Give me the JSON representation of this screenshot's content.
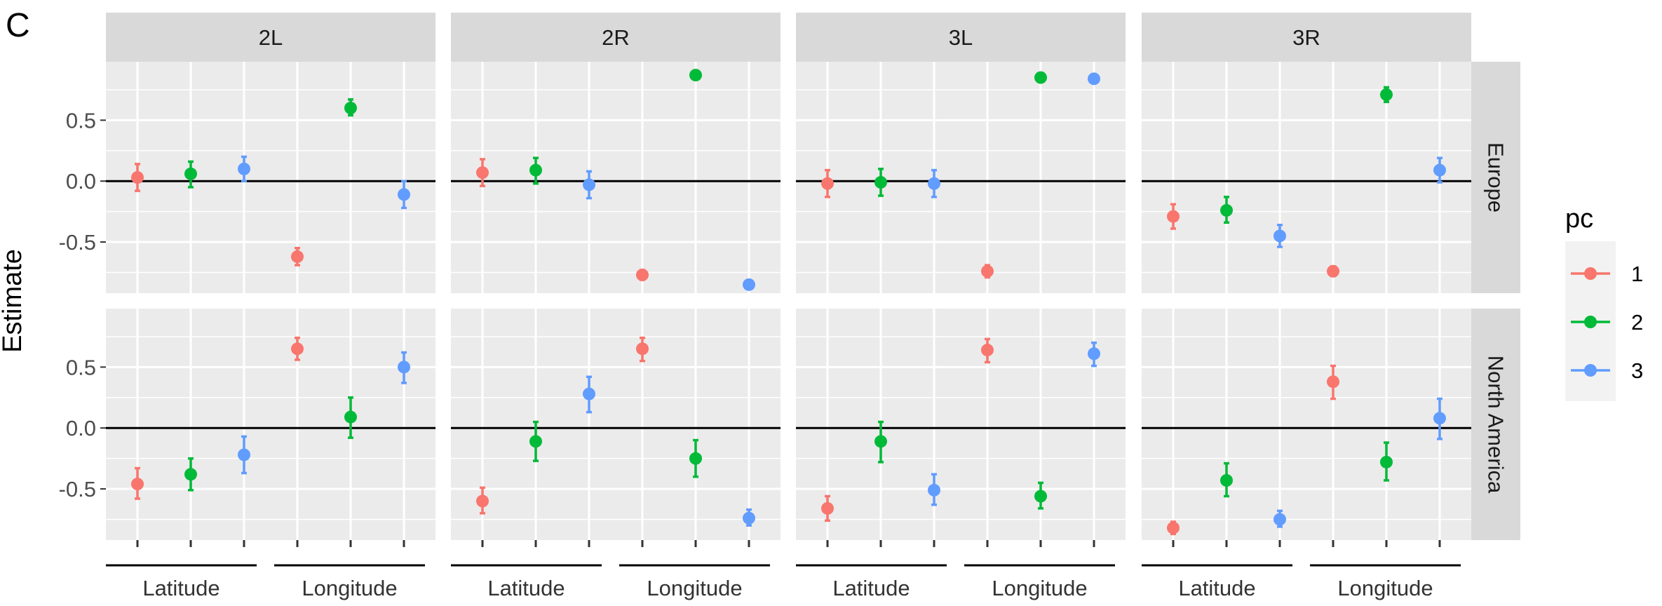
{
  "chart_data": {
    "type": "scatter",
    "panel_letter": "C",
    "ylabel": "Estimate",
    "columns": [
      "2L",
      "2R",
      "3L",
      "3R"
    ],
    "rows": [
      "Europe",
      "North America"
    ],
    "x_positions": [
      {
        "group": "Latitude",
        "pc": "1"
      },
      {
        "group": "Latitude",
        "pc": "2"
      },
      {
        "group": "Latitude",
        "pc": "3"
      },
      {
        "group": "Longitude",
        "pc": "1"
      },
      {
        "group": "Longitude",
        "pc": "2"
      },
      {
        "group": "Longitude",
        "pc": "3"
      }
    ],
    "group_labels": [
      "Latitude",
      "Longitude"
    ],
    "ylim": [
      -0.92,
      0.98
    ],
    "y_ticks": [
      "0.5",
      "0.0",
      "-0.5"
    ],
    "y_tick_values": [
      0.5,
      0.0,
      -0.5
    ],
    "y_minor_ticks": [
      0.75,
      0.25,
      -0.25,
      -0.75
    ],
    "reference_line": 0,
    "legend": {
      "title": "pc",
      "position": "right",
      "entries": [
        {
          "label": "1",
          "color": "#F8766D"
        },
        {
          "label": "2",
          "color": "#00BA38"
        },
        {
          "label": "3",
          "color": "#619CFF"
        }
      ]
    },
    "colors": {
      "1": "#F8766D",
      "2": "#00BA38",
      "3": "#619CFF"
    },
    "panels": [
      {
        "column": "2L",
        "row": "Europe",
        "points": [
          {
            "y": 0.03,
            "lo": -0.08,
            "hi": 0.14
          },
          {
            "y": 0.06,
            "lo": -0.05,
            "hi": 0.16
          },
          {
            "y": 0.1,
            "lo": 0.0,
            "hi": 0.2
          },
          {
            "y": -0.62,
            "lo": -0.69,
            "hi": -0.55
          },
          {
            "y": 0.6,
            "lo": 0.54,
            "hi": 0.67
          },
          {
            "y": -0.11,
            "lo": -0.22,
            "hi": 0.0
          }
        ]
      },
      {
        "column": "2R",
        "row": "Europe",
        "points": [
          {
            "y": 0.07,
            "lo": -0.04,
            "hi": 0.18
          },
          {
            "y": 0.09,
            "lo": -0.02,
            "hi": 0.19
          },
          {
            "y": -0.03,
            "lo": -0.14,
            "hi": 0.08
          },
          {
            "y": -0.77,
            "lo": -0.81,
            "hi": -0.73
          },
          {
            "y": 0.87,
            "lo": 0.85,
            "hi": 0.89
          },
          {
            "y": -0.85,
            "lo": -0.88,
            "hi": -0.82
          }
        ]
      },
      {
        "column": "3L",
        "row": "Europe",
        "points": [
          {
            "y": -0.02,
            "lo": -0.13,
            "hi": 0.09
          },
          {
            "y": -0.01,
            "lo": -0.12,
            "hi": 0.1
          },
          {
            "y": -0.02,
            "lo": -0.13,
            "hi": 0.09
          },
          {
            "y": -0.74,
            "lo": -0.79,
            "hi": -0.69
          },
          {
            "y": 0.85,
            "lo": 0.83,
            "hi": 0.87
          },
          {
            "y": 0.84,
            "lo": 0.82,
            "hi": 0.86
          }
        ]
      },
      {
        "column": "3R",
        "row": "Europe",
        "points": [
          {
            "y": -0.29,
            "lo": -0.39,
            "hi": -0.19
          },
          {
            "y": -0.24,
            "lo": -0.34,
            "hi": -0.13
          },
          {
            "y": -0.45,
            "lo": -0.54,
            "hi": -0.36
          },
          {
            "y": -0.74,
            "lo": -0.78,
            "hi": -0.7
          },
          {
            "y": 0.71,
            "lo": 0.65,
            "hi": 0.77
          },
          {
            "y": 0.09,
            "lo": -0.01,
            "hi": 0.19
          }
        ]
      },
      {
        "column": "2L",
        "row": "North America",
        "points": [
          {
            "y": -0.46,
            "lo": -0.58,
            "hi": -0.33
          },
          {
            "y": -0.38,
            "lo": -0.51,
            "hi": -0.25
          },
          {
            "y": -0.22,
            "lo": -0.37,
            "hi": -0.07
          },
          {
            "y": 0.65,
            "lo": 0.56,
            "hi": 0.74
          },
          {
            "y": 0.09,
            "lo": -0.08,
            "hi": 0.25
          },
          {
            "y": 0.5,
            "lo": 0.37,
            "hi": 0.62
          }
        ]
      },
      {
        "column": "2R",
        "row": "North America",
        "points": [
          {
            "y": -0.6,
            "lo": -0.7,
            "hi": -0.49
          },
          {
            "y": -0.11,
            "lo": -0.27,
            "hi": 0.05
          },
          {
            "y": 0.28,
            "lo": 0.13,
            "hi": 0.42
          },
          {
            "y": 0.65,
            "lo": 0.55,
            "hi": 0.74
          },
          {
            "y": -0.25,
            "lo": -0.4,
            "hi": -0.1
          },
          {
            "y": -0.74,
            "lo": -0.8,
            "hi": -0.67
          }
        ]
      },
      {
        "column": "3L",
        "row": "North America",
        "points": [
          {
            "y": -0.66,
            "lo": -0.76,
            "hi": -0.56
          },
          {
            "y": -0.11,
            "lo": -0.28,
            "hi": 0.05
          },
          {
            "y": -0.51,
            "lo": -0.63,
            "hi": -0.38
          },
          {
            "y": 0.64,
            "lo": 0.54,
            "hi": 0.73
          },
          {
            "y": -0.56,
            "lo": -0.66,
            "hi": -0.45
          },
          {
            "y": 0.61,
            "lo": 0.51,
            "hi": 0.7
          }
        ]
      },
      {
        "column": "3R",
        "row": "North America",
        "points": [
          {
            "y": -0.82,
            "lo": -0.87,
            "hi": -0.77
          },
          {
            "y": -0.43,
            "lo": -0.56,
            "hi": -0.29
          },
          {
            "y": -0.75,
            "lo": -0.81,
            "hi": -0.68
          },
          {
            "y": 0.38,
            "lo": 0.24,
            "hi": 0.51
          },
          {
            "y": -0.28,
            "lo": -0.43,
            "hi": -0.12
          },
          {
            "y": 0.08,
            "lo": -0.09,
            "hi": 0.24
          }
        ]
      }
    ]
  }
}
